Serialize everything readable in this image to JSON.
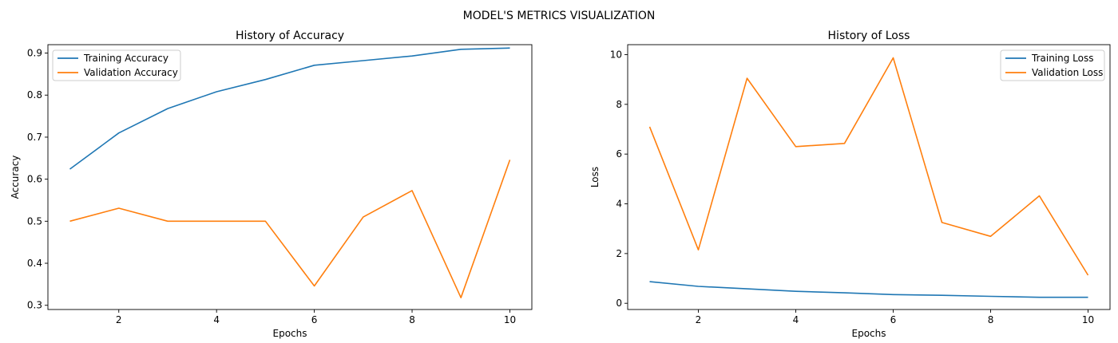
{
  "figure": {
    "title": "MODEL'S METRICS VISUALIZATION"
  },
  "chart_data": [
    {
      "type": "line",
      "title": "History of Accuracy",
      "xlabel": "Epochs",
      "ylabel": "Accuracy",
      "x": [
        1,
        2,
        3,
        4,
        5,
        6,
        7,
        8,
        9,
        10
      ],
      "xlim": [
        0.55,
        10.45
      ],
      "ylim": [
        0.29,
        0.92
      ],
      "xticks": [
        2,
        4,
        6,
        8,
        10
      ],
      "xtick_labels": [
        "2",
        "4",
        "6",
        "8",
        "10"
      ],
      "yticks": [
        0.3,
        0.4,
        0.5,
        0.6,
        0.7,
        0.8,
        0.9
      ],
      "ytick_labels": [
        "0.3",
        "0.4",
        "0.5",
        "0.6",
        "0.7",
        "0.8",
        "0.9"
      ],
      "grid": false,
      "legend_position": "top-left",
      "series": [
        {
          "name": "Training Accuracy",
          "color": "#1f77b4",
          "values": [
            0.624,
            0.71,
            0.768,
            0.808,
            0.837,
            0.871,
            0.882,
            0.893,
            0.909,
            0.912
          ]
        },
        {
          "name": "Validation Accuracy",
          "color": "#ff7f0e",
          "values": [
            0.5,
            0.531,
            0.5,
            0.5,
            0.5,
            0.346,
            0.51,
            0.573,
            0.318,
            0.646
          ]
        }
      ]
    },
    {
      "type": "line",
      "title": "History of Loss",
      "xlabel": "Epochs",
      "ylabel": "Loss",
      "x": [
        1,
        2,
        3,
        4,
        5,
        6,
        7,
        8,
        9,
        10
      ],
      "xlim": [
        0.55,
        10.45
      ],
      "ylim": [
        -0.25,
        10.4
      ],
      "xticks": [
        2,
        4,
        6,
        8,
        10
      ],
      "xtick_labels": [
        "2",
        "4",
        "6",
        "8",
        "10"
      ],
      "yticks": [
        0,
        2,
        4,
        6,
        8,
        10
      ],
      "ytick_labels": [
        "0",
        "2",
        "4",
        "6",
        "8",
        "10"
      ],
      "grid": false,
      "legend_position": "top-right",
      "series": [
        {
          "name": "Training Loss",
          "color": "#1f77b4",
          "values": [
            0.87,
            0.68,
            0.58,
            0.48,
            0.42,
            0.35,
            0.32,
            0.28,
            0.24,
            0.24
          ]
        },
        {
          "name": "Validation Loss",
          "color": "#ff7f0e",
          "values": [
            7.1,
            2.15,
            9.05,
            6.3,
            6.43,
            9.87,
            3.25,
            2.69,
            4.32,
            1.13
          ]
        }
      ]
    }
  ]
}
